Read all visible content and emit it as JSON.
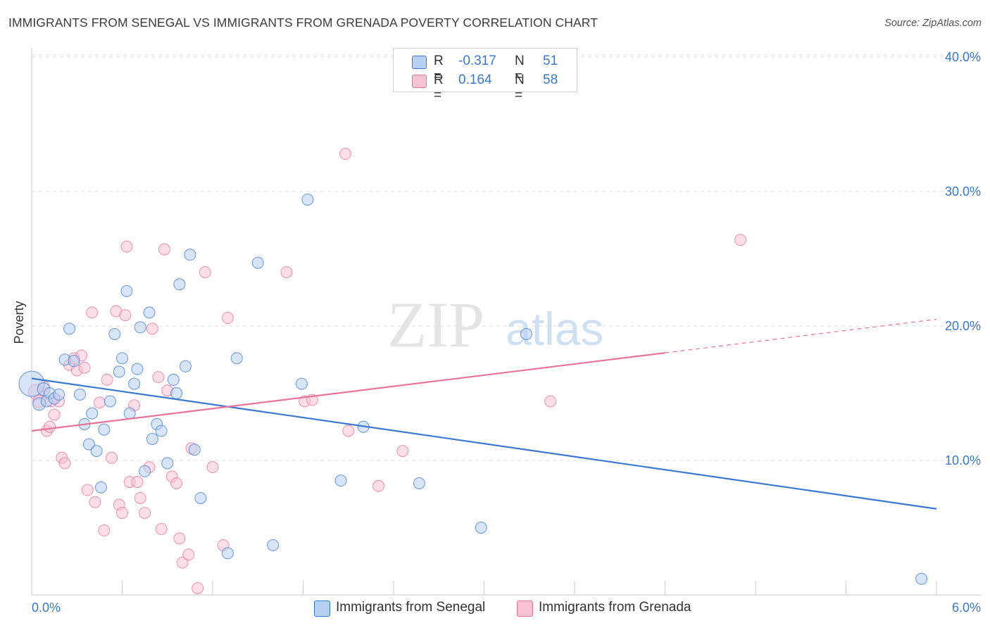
{
  "title": "IMMIGRANTS FROM SENEGAL VS IMMIGRANTS FROM GRENADA POVERTY CORRELATION CHART",
  "source": "Source: ZipAtlas.com",
  "watermark": {
    "zip": "ZIP",
    "atlas": "atlas"
  },
  "colors": {
    "blue": "#3b78d0",
    "blue_fill": "#b8d0f2",
    "pink": "#e8739b",
    "pink_fill": "#f7c2d3",
    "grid": "#dddddd",
    "axis_text": "#3b78d0"
  },
  "stats": [
    {
      "r_label": "R =",
      "r_value": "-0.317",
      "n_label": "N =",
      "n_value": "51"
    },
    {
      "r_label": "R =",
      "r_value": "0.164",
      "n_label": "N =",
      "n_value": "58"
    }
  ],
  "legend": [
    "Immigrants from Senegal",
    "Immigrants from Grenada"
  ],
  "chart_data": {
    "type": "scatter",
    "title": "IMMIGRANTS FROM SENEGAL VS IMMIGRANTS FROM GRENADA POVERTY CORRELATION CHART",
    "xlabel": "",
    "ylabel": "Poverty",
    "xlim": [
      0,
      6.0
    ],
    "ylim": [
      0,
      42
    ],
    "x_tick_labels": [
      "0.0%",
      "6.0%"
    ],
    "y_ticks": [
      10,
      20,
      30,
      40
    ],
    "y_tick_labels": [
      "10.0%",
      "20.0%",
      "30.0%",
      "40.0%"
    ],
    "grid": true,
    "legend_position": "bottom",
    "series": [
      {
        "name": "Immigrants from Senegal",
        "R": -0.317,
        "N": 51,
        "trend": {
          "x0": 0.0,
          "y0": 16.1,
          "x1": 6.0,
          "y1": 6.4
        },
        "points": [
          [
            0.0,
            15.7,
            18
          ],
          [
            0.05,
            14.2,
            9
          ],
          [
            0.08,
            15.3,
            9
          ],
          [
            0.1,
            14.4,
            8
          ],
          [
            0.12,
            15.0,
            8
          ],
          [
            0.15,
            14.6,
            8
          ],
          [
            0.18,
            14.9,
            8
          ],
          [
            0.22,
            17.5,
            8
          ],
          [
            0.25,
            19.8,
            8
          ],
          [
            0.28,
            17.4,
            8
          ],
          [
            0.32,
            14.9,
            8
          ],
          [
            0.35,
            12.7,
            8
          ],
          [
            0.38,
            11.2,
            8
          ],
          [
            0.4,
            13.5,
            8
          ],
          [
            0.43,
            10.7,
            8
          ],
          [
            0.46,
            8.0,
            8
          ],
          [
            0.48,
            12.3,
            8
          ],
          [
            0.52,
            14.4,
            8
          ],
          [
            0.55,
            19.4,
            8
          ],
          [
            0.58,
            16.6,
            8
          ],
          [
            0.6,
            17.6,
            8
          ],
          [
            0.63,
            22.6,
            8
          ],
          [
            0.65,
            13.5,
            8
          ],
          [
            0.68,
            15.7,
            8
          ],
          [
            0.7,
            16.8,
            8
          ],
          [
            0.72,
            19.9,
            8
          ],
          [
            0.75,
            9.2,
            8
          ],
          [
            0.78,
            21.0,
            8
          ],
          [
            0.8,
            11.6,
            8
          ],
          [
            0.83,
            12.7,
            8
          ],
          [
            0.86,
            12.2,
            8
          ],
          [
            0.9,
            9.8,
            8
          ],
          [
            0.94,
            16.0,
            8
          ],
          [
            0.96,
            15.0,
            8
          ],
          [
            0.98,
            23.1,
            8
          ],
          [
            1.02,
            17.0,
            8
          ],
          [
            1.05,
            25.3,
            8
          ],
          [
            1.08,
            10.8,
            8
          ],
          [
            1.12,
            7.2,
            8
          ],
          [
            1.3,
            3.1,
            8
          ],
          [
            1.36,
            17.6,
            8
          ],
          [
            1.5,
            24.7,
            8
          ],
          [
            1.6,
            3.7,
            8
          ],
          [
            1.79,
            15.7,
            8
          ],
          [
            1.83,
            29.4,
            8
          ],
          [
            2.05,
            8.5,
            8
          ],
          [
            2.2,
            12.5,
            8
          ],
          [
            2.57,
            8.3,
            8
          ],
          [
            2.98,
            5.0,
            8
          ],
          [
            3.28,
            19.4,
            8
          ],
          [
            5.9,
            1.2,
            8
          ]
        ]
      },
      {
        "name": "Immigrants from Grenada",
        "R": 0.164,
        "N": 58,
        "trend": {
          "x0": 0.0,
          "y0": 12.2,
          "x1": 4.2,
          "y1": 18.0,
          "dash_x1": 6.0,
          "dash_y1": 20.5
        },
        "points": [
          [
            0.03,
            15.1,
            11
          ],
          [
            0.05,
            14.4,
            9
          ],
          [
            0.08,
            15.5,
            8
          ],
          [
            0.1,
            12.2,
            8
          ],
          [
            0.12,
            12.5,
            8
          ],
          [
            0.15,
            13.4,
            8
          ],
          [
            0.18,
            14.4,
            8
          ],
          [
            0.2,
            10.2,
            8
          ],
          [
            0.22,
            9.8,
            8
          ],
          [
            0.25,
            17.1,
            8
          ],
          [
            0.28,
            17.6,
            8
          ],
          [
            0.3,
            16.7,
            8
          ],
          [
            0.33,
            17.8,
            8
          ],
          [
            0.35,
            16.9,
            8
          ],
          [
            0.37,
            7.8,
            8
          ],
          [
            0.4,
            21.0,
            8
          ],
          [
            0.42,
            6.9,
            8
          ],
          [
            0.45,
            14.3,
            8
          ],
          [
            0.48,
            4.8,
            8
          ],
          [
            0.5,
            16.0,
            8
          ],
          [
            0.53,
            10.2,
            8
          ],
          [
            0.56,
            21.1,
            8
          ],
          [
            0.58,
            6.7,
            8
          ],
          [
            0.6,
            6.1,
            8
          ],
          [
            0.62,
            20.8,
            8
          ],
          [
            0.63,
            25.9,
            8
          ],
          [
            0.65,
            8.4,
            8
          ],
          [
            0.68,
            14.1,
            8
          ],
          [
            0.7,
            8.4,
            8
          ],
          [
            0.72,
            7.2,
            8
          ],
          [
            0.75,
            6.1,
            8
          ],
          [
            0.78,
            9.5,
            8
          ],
          [
            0.8,
            19.8,
            8
          ],
          [
            0.84,
            16.2,
            8
          ],
          [
            0.86,
            4.9,
            8
          ],
          [
            0.88,
            25.7,
            8
          ],
          [
            0.9,
            15.2,
            8
          ],
          [
            0.93,
            8.8,
            8
          ],
          [
            0.96,
            8.3,
            8
          ],
          [
            0.98,
            4.2,
            8
          ],
          [
            1.0,
            2.4,
            8
          ],
          [
            1.04,
            3.0,
            8
          ],
          [
            1.06,
            10.9,
            8
          ],
          [
            1.1,
            0.5,
            8
          ],
          [
            1.15,
            24.0,
            8
          ],
          [
            1.2,
            9.5,
            8
          ],
          [
            1.27,
            3.7,
            8
          ],
          [
            1.3,
            20.6,
            8
          ],
          [
            1.69,
            24.0,
            8
          ],
          [
            1.81,
            14.4,
            8
          ],
          [
            1.86,
            14.5,
            8
          ],
          [
            2.08,
            32.8,
            8
          ],
          [
            2.1,
            12.2,
            8
          ],
          [
            2.3,
            8.1,
            8
          ],
          [
            2.46,
            10.7,
            8
          ],
          [
            3.44,
            14.4,
            8
          ],
          [
            4.7,
            26.4,
            8
          ],
          [
            0.13,
            14.4,
            8
          ]
        ]
      }
    ]
  }
}
